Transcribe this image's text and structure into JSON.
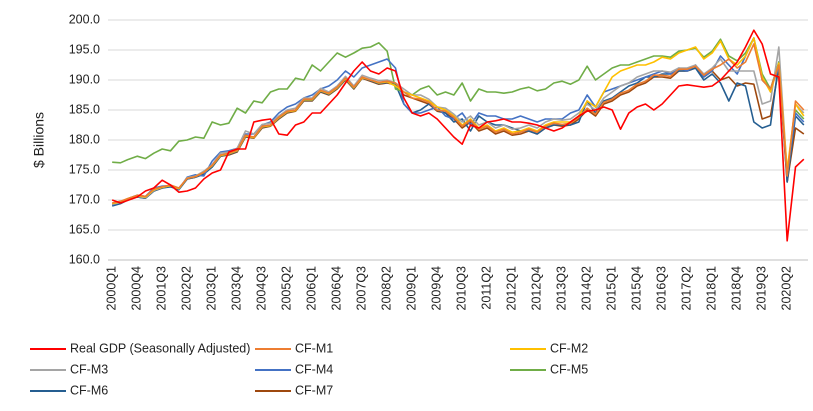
{
  "chart_data": {
    "type": "line",
    "y_label": "$ Billions",
    "categories": [
      "2000Q1",
      null,
      null,
      "2000Q4",
      null,
      null,
      "2001Q3",
      null,
      null,
      "2002Q2",
      null,
      null,
      "2003Q1",
      null,
      null,
      "2003Q4",
      null,
      null,
      "2004Q3",
      null,
      null,
      "2005Q2",
      null,
      null,
      "2006Q1",
      null,
      null,
      "2006Q4",
      null,
      null,
      "2007Q3",
      null,
      null,
      "2008Q2",
      null,
      null,
      "2009Q1",
      null,
      null,
      "2009Q4",
      null,
      null,
      "2010Q3",
      null,
      null,
      "2011Q2",
      null,
      null,
      "2012Q1",
      null,
      null,
      "2012Q4",
      null,
      null,
      "2013Q3",
      null,
      null,
      "2014Q2",
      null,
      null,
      "2015Q1",
      null,
      null,
      "2015Q4",
      null,
      null,
      "2016Q3",
      null,
      null,
      "2017Q2",
      null,
      null,
      "2018Q1",
      null,
      null,
      "2018Q4",
      null,
      null,
      "2019Q3",
      null,
      null,
      "2020Q2",
      null,
      null
    ],
    "ylim": [
      160,
      200
    ],
    "yticks": [
      {
        "value": 160,
        "label": "160.0"
      },
      {
        "value": 165,
        "label": "165.0"
      },
      {
        "value": 170,
        "label": "170.0"
      },
      {
        "value": 175,
        "label": "175.0"
      },
      {
        "value": 180,
        "label": "180.0"
      },
      {
        "value": 185,
        "label": "185.0"
      },
      {
        "value": 190,
        "label": "190.0"
      },
      {
        "value": 195,
        "label": "195.0"
      },
      {
        "value": 200,
        "label": "200.0"
      }
    ],
    "grid": true,
    "legend": "bottom",
    "series": [
      {
        "name": "Real GDP (Seasonally Adjusted)",
        "color": "#ff0000",
        "values": [
          170.0,
          169.5,
          170.0,
          170.5,
          171.5,
          172.0,
          173.3,
          172.5,
          171.3,
          171.5,
          172.0,
          173.5,
          174.5,
          175.0,
          178.0,
          178.5,
          178.5,
          183.0,
          183.3,
          183.5,
          181.0,
          180.8,
          182.5,
          183.0,
          184.5,
          184.5,
          186.0,
          187.5,
          189.5,
          191.5,
          193.0,
          191.5,
          191.0,
          192.0,
          191.5,
          187.0,
          184.5,
          184.0,
          184.5,
          183.5,
          182.0,
          180.5,
          179.3,
          182.5,
          182.0,
          183.0,
          183.2,
          183.5,
          183.0,
          183.0,
          182.8,
          182.5,
          182.0,
          181.5,
          182.0,
          183.0,
          184.0,
          184.8,
          185.0,
          185.5,
          185.0,
          181.8,
          184.5,
          185.5,
          186.0,
          185.0,
          186.0,
          187.5,
          189.0,
          189.2,
          189.0,
          188.8,
          189.0,
          190.0,
          191.5,
          193.0,
          195.5,
          198.3,
          196.0,
          191.0,
          190.5,
          163.2,
          175.5,
          176.8
        ]
      },
      {
        "name": "CF-M1",
        "color": "#ed7d31",
        "values": [
          169.5,
          169.8,
          170.3,
          170.8,
          170.6,
          171.8,
          172.2,
          172.5,
          172.0,
          173.6,
          173.9,
          174.6,
          175.8,
          177.5,
          177.8,
          178.3,
          180.8,
          180.5,
          182.3,
          182.5,
          183.8,
          184.8,
          185.0,
          186.8,
          186.8,
          188.3,
          187.8,
          188.8,
          190.3,
          188.8,
          190.5,
          190.0,
          189.6,
          189.8,
          189.5,
          188.0,
          187.0,
          186.8,
          186.3,
          185.0,
          184.8,
          183.8,
          182.3,
          183.3,
          181.8,
          182.3,
          181.3,
          181.8,
          181.0,
          181.3,
          181.8,
          181.3,
          182.3,
          182.8,
          182.6,
          182.8,
          183.8,
          185.3,
          184.3,
          186.3,
          186.8,
          187.8,
          188.3,
          189.3,
          189.8,
          190.8,
          190.8,
          190.6,
          191.8,
          191.8,
          192.3,
          190.8,
          191.8,
          192.5,
          193.5,
          192.0,
          193.0,
          196.0,
          190.0,
          188.5,
          192.5,
          174.0,
          186.5,
          185.0
        ]
      },
      {
        "name": "CF-M2",
        "color": "#ffc000",
        "values": [
          169.4,
          169.7,
          170.3,
          170.7,
          170.5,
          171.7,
          172.1,
          172.4,
          171.9,
          173.6,
          173.9,
          174.6,
          175.7,
          177.4,
          177.7,
          178.2,
          180.7,
          180.4,
          182.2,
          182.4,
          183.7,
          184.7,
          184.9,
          186.7,
          186.7,
          188.2,
          187.7,
          188.7,
          190.2,
          188.7,
          190.4,
          190.0,
          189.5,
          189.7,
          189.0,
          188.0,
          187.5,
          187.0,
          186.5,
          185.5,
          185.0,
          184.0,
          182.5,
          183.5,
          182.0,
          182.5,
          181.5,
          182.0,
          181.3,
          181.5,
          182.0,
          181.5,
          182.5,
          183.0,
          183.0,
          183.0,
          184.0,
          186.5,
          185.5,
          188.0,
          190.5,
          191.5,
          192.0,
          192.5,
          192.5,
          193.0,
          193.8,
          193.5,
          194.5,
          195.0,
          195.5,
          193.5,
          194.5,
          196.5,
          193.5,
          192.5,
          194.0,
          197.0,
          190.5,
          188.0,
          192.8,
          175.0,
          186.0,
          184.0
        ]
      },
      {
        "name": "CF-M3",
        "color": "#a5a5a5",
        "values": [
          169.3,
          169.6,
          170.2,
          170.6,
          170.4,
          171.6,
          172.1,
          172.4,
          171.9,
          173.7,
          174.0,
          174.8,
          175.9,
          177.8,
          178.0,
          178.6,
          181.5,
          181.0,
          182.6,
          182.8,
          184.0,
          185.0,
          185.3,
          187.0,
          187.0,
          188.6,
          188.0,
          189.0,
          190.6,
          189.0,
          190.8,
          190.3,
          189.9,
          190.0,
          189.5,
          188.5,
          187.5,
          187.5,
          186.8,
          185.5,
          185.3,
          184.3,
          183.0,
          184.0,
          182.5,
          183.0,
          182.0,
          182.5,
          181.8,
          182.0,
          182.5,
          182.0,
          183.0,
          183.5,
          183.3,
          183.5,
          184.5,
          186.0,
          185.0,
          187.0,
          188.0,
          189.0,
          189.5,
          190.5,
          191.0,
          191.5,
          191.5,
          191.3,
          192.0,
          192.0,
          192.5,
          191.0,
          192.0,
          193.5,
          191.5,
          191.5,
          191.5,
          191.5,
          186.0,
          186.5,
          195.5,
          174.5,
          186.0,
          184.5
        ]
      },
      {
        "name": "CF-M4",
        "color": "#4472c4",
        "values": [
          169.2,
          169.6,
          170.3,
          170.8,
          170.6,
          172.0,
          172.3,
          172.4,
          171.8,
          173.8,
          174.2,
          174.0,
          176.5,
          178.0,
          178.2,
          178.6,
          181.0,
          181.0,
          182.5,
          183.0,
          184.5,
          185.5,
          186.0,
          187.0,
          187.5,
          188.5,
          189.0,
          190.0,
          191.5,
          190.5,
          192.0,
          192.5,
          193.0,
          193.5,
          192.0,
          186.0,
          184.5,
          184.5,
          185.0,
          185.5,
          184.0,
          183.5,
          184.5,
          182.5,
          184.5,
          184.0,
          184.0,
          183.5,
          183.5,
          184.0,
          183.5,
          183.0,
          183.5,
          183.5,
          183.5,
          184.5,
          185.0,
          187.5,
          185.5,
          188.0,
          188.5,
          189.0,
          189.5,
          190.0,
          190.5,
          191.0,
          191.5,
          191.0,
          192.0,
          191.5,
          192.5,
          190.5,
          191.5,
          194.0,
          192.5,
          191.0,
          194.0,
          197.0,
          190.0,
          188.5,
          192.0,
          174.0,
          184.5,
          183.0
        ]
      },
      {
        "name": "CF-M5",
        "color": "#70ad47",
        "values": [
          176.3,
          176.2,
          176.8,
          177.3,
          176.9,
          177.8,
          178.5,
          178.2,
          179.8,
          180.0,
          180.5,
          180.3,
          183.0,
          182.5,
          182.8,
          185.3,
          184.5,
          186.5,
          186.2,
          188.0,
          188.5,
          188.5,
          190.3,
          190.0,
          192.5,
          191.5,
          193.0,
          194.5,
          193.8,
          194.5,
          195.3,
          195.5,
          196.2,
          194.8,
          188.5,
          188.0,
          187.5,
          188.5,
          189.0,
          187.5,
          188.0,
          187.5,
          189.5,
          186.5,
          188.5,
          188.0,
          188.0,
          187.8,
          188.0,
          188.5,
          188.8,
          188.2,
          188.5,
          189.5,
          189.8,
          189.3,
          190.0,
          192.3,
          190.0,
          191.0,
          192.0,
          192.5,
          192.5,
          193.0,
          193.5,
          194.0,
          194.0,
          193.8,
          194.8,
          195.0,
          195.3,
          193.8,
          194.8,
          196.8,
          194.0,
          193.2,
          194.5,
          197.0,
          191.0,
          188.5,
          193.0,
          174.0,
          185.0,
          183.5
        ]
      },
      {
        "name": "CF-M6",
        "color": "#255e91",
        "values": [
          169.0,
          169.4,
          170.1,
          170.5,
          170.3,
          171.5,
          172.0,
          172.2,
          171.7,
          173.5,
          173.8,
          174.3,
          175.5,
          177.3,
          177.6,
          178.1,
          180.6,
          180.4,
          182.1,
          182.4,
          183.6,
          184.6,
          184.9,
          186.6,
          186.6,
          188.1,
          187.6,
          188.6,
          190.1,
          188.6,
          190.4,
          189.9,
          189.4,
          189.6,
          189.3,
          186.0,
          184.5,
          185.0,
          186.0,
          185.0,
          184.5,
          183.0,
          183.5,
          181.5,
          184.0,
          183.0,
          182.5,
          182.5,
          182.0,
          181.5,
          181.5,
          181.0,
          182.0,
          182.5,
          182.5,
          182.5,
          183.0,
          186.5,
          184.5,
          186.5,
          187.0,
          188.0,
          189.0,
          189.5,
          190.5,
          190.5,
          191.0,
          191.0,
          191.5,
          191.5,
          192.0,
          190.0,
          191.0,
          189.5,
          186.5,
          189.5,
          189.0,
          183.0,
          182.0,
          182.5,
          193.0,
          173.0,
          184.0,
          182.5
        ]
      },
      {
        "name": "CF-M7",
        "color": "#9e480e",
        "values": [
          169.2,
          169.5,
          170.2,
          170.5,
          170.3,
          171.5,
          172.0,
          172.3,
          171.8,
          173.5,
          173.8,
          174.5,
          175.5,
          177.3,
          177.5,
          178.0,
          180.5,
          180.3,
          182.0,
          182.3,
          183.5,
          184.5,
          184.8,
          186.5,
          186.5,
          188.0,
          187.5,
          188.5,
          190.0,
          188.5,
          190.3,
          189.8,
          189.3,
          189.5,
          189.2,
          187.5,
          187.0,
          186.5,
          186.0,
          184.8,
          184.5,
          183.5,
          182.0,
          183.0,
          181.5,
          182.0,
          181.0,
          181.5,
          180.8,
          181.0,
          181.5,
          181.0,
          182.0,
          182.5,
          182.3,
          182.5,
          183.5,
          185.0,
          184.0,
          186.0,
          186.5,
          187.5,
          188.0,
          189.0,
          189.5,
          190.5,
          190.5,
          190.3,
          191.5,
          191.5,
          192.0,
          190.5,
          191.5,
          190.0,
          190.5,
          189.0,
          189.5,
          189.3,
          183.5,
          184.0,
          192.0,
          173.0,
          182.0,
          181.0
        ]
      }
    ]
  }
}
